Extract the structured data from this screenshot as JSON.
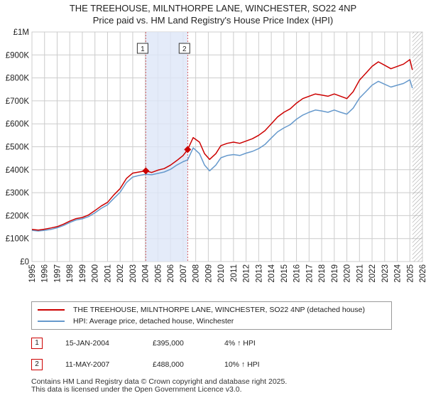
{
  "title_line1": "THE TREEHOUSE, MILNTHORPE LANE, WINCHESTER, SO22 4NP",
  "title_line2": "Price paid vs. HM Land Registry's House Price Index (HPI)",
  "colors": {
    "property": "#cc0000",
    "hpi": "#6699cc",
    "shade": "#dde6f7",
    "grid": "#cccccc"
  },
  "chart_data": {
    "type": "line",
    "title": "THE TREEHOUSE, MILNTHORPE LANE, WINCHESTER, SO22 4NP — Price paid vs. HM Land Registry's House Price Index (HPI)",
    "xlim": [
      1995,
      2026
    ],
    "ylim": [
      0,
      1000000
    ],
    "x_ticks": [
      "1995",
      "1996",
      "1997",
      "1998",
      "1999",
      "2000",
      "2001",
      "2002",
      "2003",
      "2004",
      "2005",
      "2006",
      "2007",
      "2008",
      "2009",
      "2010",
      "2011",
      "2012",
      "2013",
      "2014",
      "2015",
      "2016",
      "2017",
      "2018",
      "2019",
      "2020",
      "2021",
      "2022",
      "2023",
      "2024",
      "2025",
      "2026"
    ],
    "y_ticks": [
      {
        "value": 0,
        "label": "£0"
      },
      {
        "value": 100000,
        "label": "£100K"
      },
      {
        "value": 200000,
        "label": "£200K"
      },
      {
        "value": 300000,
        "label": "£300K"
      },
      {
        "value": 400000,
        "label": "£400K"
      },
      {
        "value": 500000,
        "label": "£500K"
      },
      {
        "value": 600000,
        "label": "£600K"
      },
      {
        "value": 700000,
        "label": "£700K"
      },
      {
        "value": 800000,
        "label": "£800K"
      },
      {
        "value": 900000,
        "label": "£900K"
      },
      {
        "value": 1000000,
        "label": "£1M"
      }
    ],
    "shaded_region": [
      2004.04,
      2007.36
    ],
    "future_hatch_from": 2025.2,
    "series": [
      {
        "name": "THE TREEHOUSE, MILNTHORPE LANE, WINCHESTER, SO22 4NP (detached house)",
        "color": "#cc0000",
        "points": [
          [
            1995.0,
            140000
          ],
          [
            1995.5,
            137000
          ],
          [
            1996.0,
            141000
          ],
          [
            1996.5,
            146000
          ],
          [
            1997.0,
            152000
          ],
          [
            1997.5,
            163000
          ],
          [
            1998.0,
            176000
          ],
          [
            1998.5,
            187000
          ],
          [
            1999.0,
            192000
          ],
          [
            1999.5,
            203000
          ],
          [
            2000.0,
            222000
          ],
          [
            2000.5,
            242000
          ],
          [
            2001.0,
            258000
          ],
          [
            2001.5,
            290000
          ],
          [
            2002.0,
            318000
          ],
          [
            2002.5,
            362000
          ],
          [
            2003.0,
            385000
          ],
          [
            2003.5,
            390000
          ],
          [
            2004.04,
            395000
          ],
          [
            2004.5,
            388000
          ],
          [
            2005.0,
            398000
          ],
          [
            2005.5,
            405000
          ],
          [
            2006.0,
            420000
          ],
          [
            2006.5,
            440000
          ],
          [
            2007.0,
            462000
          ],
          [
            2007.36,
            488000
          ],
          [
            2007.8,
            540000
          ],
          [
            2008.3,
            520000
          ],
          [
            2008.7,
            470000
          ],
          [
            2009.1,
            445000
          ],
          [
            2009.6,
            470000
          ],
          [
            2010.0,
            505000
          ],
          [
            2010.5,
            515000
          ],
          [
            2011.0,
            520000
          ],
          [
            2011.5,
            515000
          ],
          [
            2012.0,
            525000
          ],
          [
            2012.5,
            535000
          ],
          [
            2013.0,
            550000
          ],
          [
            2013.5,
            570000
          ],
          [
            2014.0,
            600000
          ],
          [
            2014.5,
            630000
          ],
          [
            2015.0,
            650000
          ],
          [
            2015.5,
            665000
          ],
          [
            2016.0,
            690000
          ],
          [
            2016.5,
            710000
          ],
          [
            2017.0,
            720000
          ],
          [
            2017.5,
            730000
          ],
          [
            2018.0,
            725000
          ],
          [
            2018.5,
            720000
          ],
          [
            2019.0,
            730000
          ],
          [
            2019.5,
            720000
          ],
          [
            2020.0,
            710000
          ],
          [
            2020.5,
            740000
          ],
          [
            2021.0,
            790000
          ],
          [
            2021.5,
            820000
          ],
          [
            2022.0,
            850000
          ],
          [
            2022.5,
            870000
          ],
          [
            2023.0,
            855000
          ],
          [
            2023.5,
            840000
          ],
          [
            2024.0,
            850000
          ],
          [
            2024.5,
            860000
          ],
          [
            2025.0,
            880000
          ],
          [
            2025.2,
            835000
          ]
        ]
      },
      {
        "name": "HPI: Average price, detached house, Winchester",
        "color": "#6699cc",
        "points": [
          [
            1995.0,
            136000
          ],
          [
            1995.5,
            133000
          ],
          [
            1996.0,
            136000
          ],
          [
            1996.5,
            140000
          ],
          [
            1997.0,
            147000
          ],
          [
            1997.5,
            157000
          ],
          [
            1998.0,
            170000
          ],
          [
            1998.5,
            181000
          ],
          [
            1999.0,
            186000
          ],
          [
            1999.5,
            196000
          ],
          [
            2000.0,
            212000
          ],
          [
            2000.5,
            232000
          ],
          [
            2001.0,
            247000
          ],
          [
            2001.5,
            275000
          ],
          [
            2002.0,
            302000
          ],
          [
            2002.5,
            344000
          ],
          [
            2003.0,
            368000
          ],
          [
            2003.5,
            375000
          ],
          [
            2004.04,
            380000
          ],
          [
            2004.5,
            378000
          ],
          [
            2005.0,
            384000
          ],
          [
            2005.5,
            390000
          ],
          [
            2006.0,
            402000
          ],
          [
            2006.5,
            420000
          ],
          [
            2007.0,
            435000
          ],
          [
            2007.36,
            443000
          ],
          [
            2007.8,
            495000
          ],
          [
            2008.3,
            470000
          ],
          [
            2008.7,
            420000
          ],
          [
            2009.1,
            395000
          ],
          [
            2009.6,
            420000
          ],
          [
            2010.0,
            452000
          ],
          [
            2010.5,
            462000
          ],
          [
            2011.0,
            466000
          ],
          [
            2011.5,
            462000
          ],
          [
            2012.0,
            472000
          ],
          [
            2012.5,
            480000
          ],
          [
            2013.0,
            492000
          ],
          [
            2013.5,
            510000
          ],
          [
            2014.0,
            538000
          ],
          [
            2014.5,
            565000
          ],
          [
            2015.0,
            582000
          ],
          [
            2015.5,
            596000
          ],
          [
            2016.0,
            620000
          ],
          [
            2016.5,
            638000
          ],
          [
            2017.0,
            650000
          ],
          [
            2017.5,
            660000
          ],
          [
            2018.0,
            656000
          ],
          [
            2018.5,
            650000
          ],
          [
            2019.0,
            660000
          ],
          [
            2019.5,
            650000
          ],
          [
            2020.0,
            642000
          ],
          [
            2020.5,
            668000
          ],
          [
            2021.0,
            712000
          ],
          [
            2021.5,
            740000
          ],
          [
            2022.0,
            768000
          ],
          [
            2022.5,
            785000
          ],
          [
            2023.0,
            772000
          ],
          [
            2023.5,
            760000
          ],
          [
            2024.0,
            768000
          ],
          [
            2024.5,
            776000
          ],
          [
            2025.0,
            792000
          ],
          [
            2025.2,
            755000
          ]
        ]
      }
    ],
    "sales": [
      {
        "marker": "1",
        "x": 2004.04,
        "y": 395000
      },
      {
        "marker": "2",
        "x": 2007.36,
        "y": 488000
      }
    ]
  },
  "legend": {
    "property": "THE TREEHOUSE, MILNTHORPE LANE, WINCHESTER, SO22 4NP (detached house)",
    "hpi": "HPI: Average price, detached house, Winchester"
  },
  "sales": [
    {
      "marker": "1",
      "date": "15-JAN-2004",
      "price": "£395,000",
      "hpi": "4% ↑ HPI"
    },
    {
      "marker": "2",
      "date": "11-MAY-2007",
      "price": "£488,000",
      "hpi": "10% ↑ HPI"
    }
  ],
  "footer_line1": "Contains HM Land Registry data © Crown copyright and database right 2025.",
  "footer_line2": "This data is licensed under the Open Government Licence v3.0."
}
